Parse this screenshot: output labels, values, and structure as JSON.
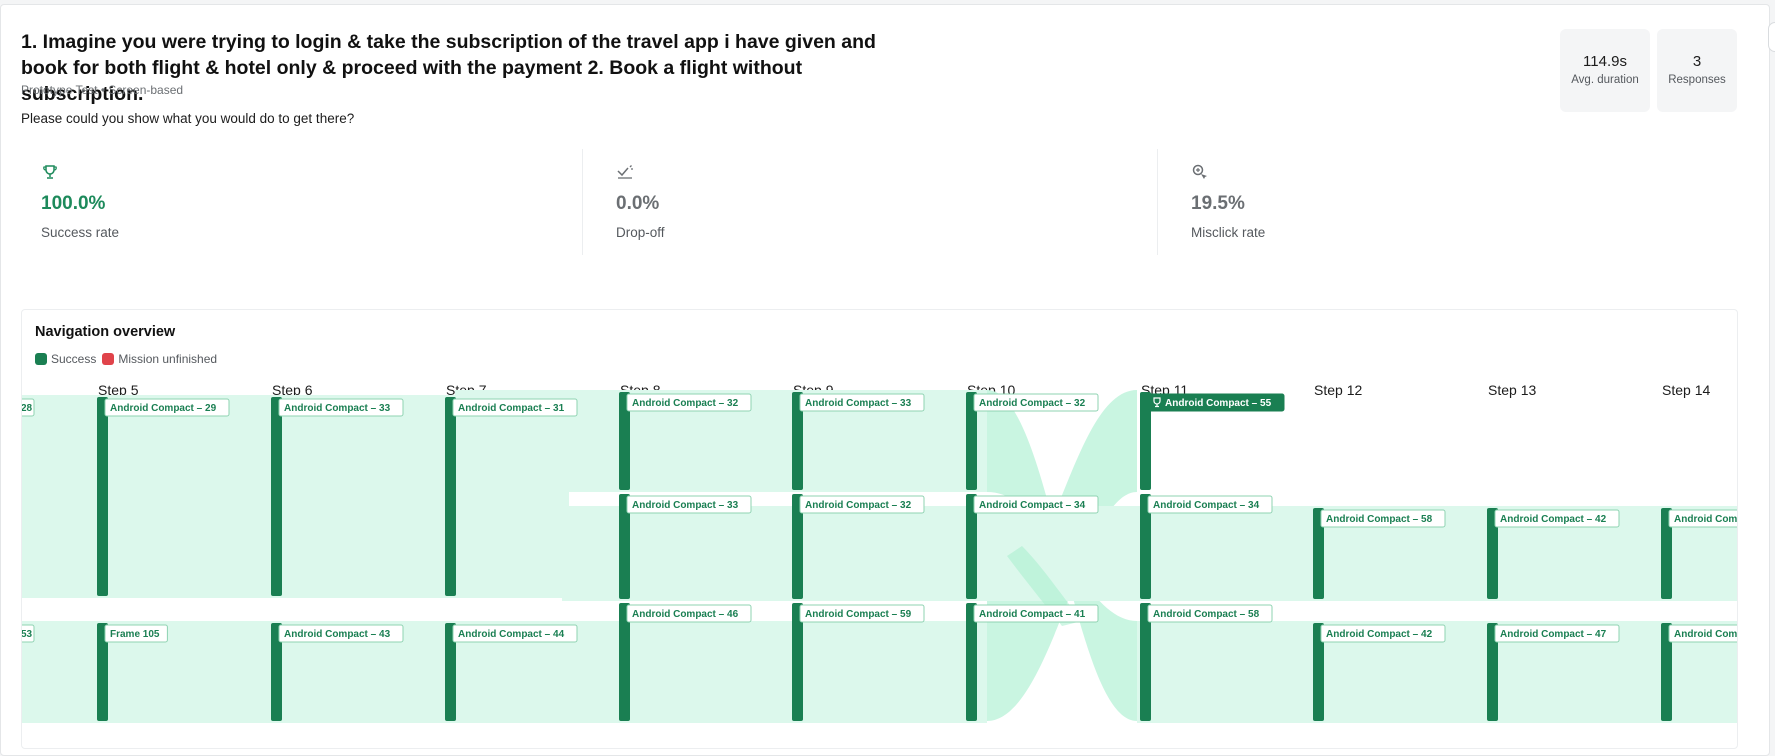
{
  "task": {
    "title": "1. Imagine you were trying to login & take the subscription of the travel app i have given and book for both flight & hotel only & proceed with the payment 2. Book a flight without subscription.",
    "subtitle": "Prototype Test • Screen-based",
    "prompt": "Please could you show what you would do to get there?"
  },
  "stats": {
    "avg_duration_value": "114.9s",
    "avg_duration_label": "Avg. duration",
    "responses_value": "3",
    "responses_label": "Responses"
  },
  "metrics": [
    {
      "value": "100.0%",
      "label": "Success rate",
      "icon": "trophy-icon",
      "color": "#1d8a5b"
    },
    {
      "value": "0.0%",
      "label": "Drop-off",
      "icon": "drop-off-icon",
      "color": "#6b6f73"
    },
    {
      "value": "19.5%",
      "label": "Misclick rate",
      "icon": "misclick-icon",
      "color": "#6b6f73"
    }
  ],
  "navigation": {
    "title": "Navigation overview",
    "legend": [
      {
        "label": "Success",
        "color": "#1a7f52"
      },
      {
        "label": "Mission unfinished",
        "color": "#e0434a"
      }
    ],
    "steps": [
      "Step 5",
      "Step 6",
      "Step 7",
      "Step 8",
      "Step 9",
      "Step 10",
      "Step 11",
      "Step 12",
      "Step 13",
      "Step 14"
    ],
    "left_clipped_labels": [
      "28",
      "53"
    ],
    "columns": [
      {
        "step": "Step 5",
        "nodes": [
          "Android Compact – 29",
          "Frame 105"
        ]
      },
      {
        "step": "Step 6",
        "nodes": [
          "Android Compact – 33",
          "Android Compact – 43"
        ]
      },
      {
        "step": "Step 7",
        "nodes": [
          "Android Compact – 31",
          "Android Compact – 44"
        ]
      },
      {
        "step": "Step 8",
        "nodes": [
          "Android Compact – 32",
          "Android Compact – 33",
          "Android Compact – 46"
        ]
      },
      {
        "step": "Step 9",
        "nodes": [
          "Android Compact – 33",
          "Android Compact – 32",
          "Android Compact – 59"
        ]
      },
      {
        "step": "Step 10",
        "nodes": [
          "Android Compact – 32",
          "Android Compact – 34",
          "Android Compact – 41"
        ]
      },
      {
        "step": "Step 11",
        "nodes": [
          "Android Compact – 55",
          "Android Compact – 34",
          "Android Compact – 58"
        ],
        "success_node": "Android Compact – 55"
      },
      {
        "step": "Step 12",
        "nodes": [
          "Android Compact – 58",
          "Android Compact – 42"
        ]
      },
      {
        "step": "Step 13",
        "nodes": [
          "Android Compact – 42",
          "Android Compact – 47"
        ]
      },
      {
        "step": "Step 14",
        "nodes": [
          "Android Compa",
          "Android Compa"
        ]
      }
    ],
    "colors": {
      "bar": "#1a7f52",
      "flow": "#dcf8ec",
      "flow_cross": "#b6f2d6",
      "label_text": "#1a7f52",
      "label_border": "#8fd3b2"
    }
  }
}
